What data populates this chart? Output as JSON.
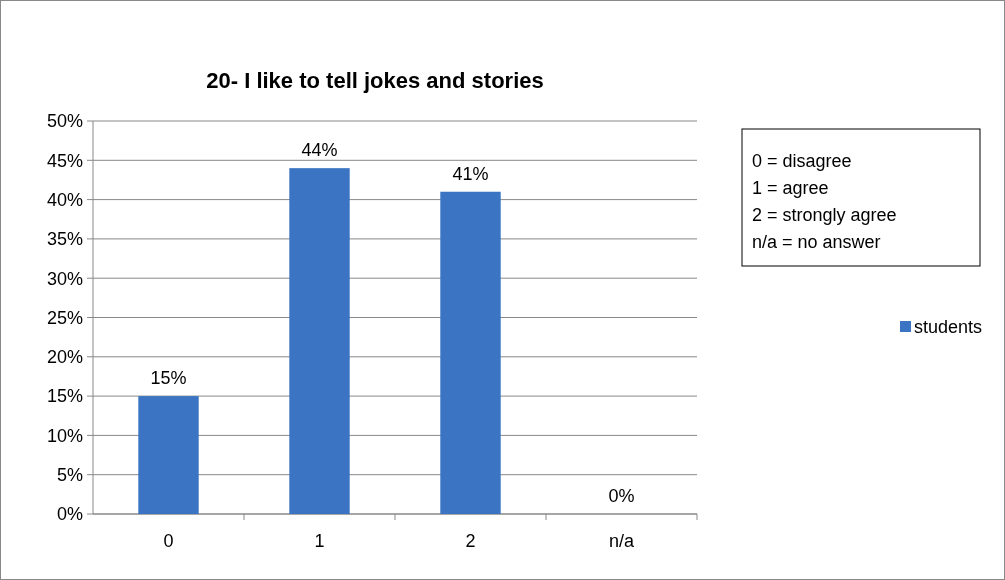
{
  "chart_data": {
    "type": "bar",
    "title": "20- I like to tell jokes and stories",
    "categories": [
      "0",
      "1",
      "2",
      "n/a"
    ],
    "series": [
      {
        "name": "students",
        "color": "#3a74c2",
        "values": [
          15,
          44,
          41,
          0
        ],
        "value_labels": [
          "15%",
          "44%",
          "41%",
          "0%"
        ]
      }
    ],
    "ylim": [
      0,
      50
    ],
    "yticks": [
      {
        "value": 0,
        "label": "0%"
      },
      {
        "value": 5,
        "label": "5%"
      },
      {
        "value": 10,
        "label": "10%"
      },
      {
        "value": 15,
        "label": "15%"
      },
      {
        "value": 20,
        "label": "20%"
      },
      {
        "value": 25,
        "label": "25%"
      },
      {
        "value": 30,
        "label": "30%"
      },
      {
        "value": 35,
        "label": "35%"
      },
      {
        "value": 40,
        "label": "40%"
      },
      {
        "value": 45,
        "label": "45%"
      },
      {
        "value": 50,
        "label": "50%"
      }
    ],
    "grid": "y",
    "legend": "right",
    "annotations": [
      "0 = disagree",
      "1 = agree",
      "2 = strongly agree",
      "n/a = no answer"
    ]
  }
}
